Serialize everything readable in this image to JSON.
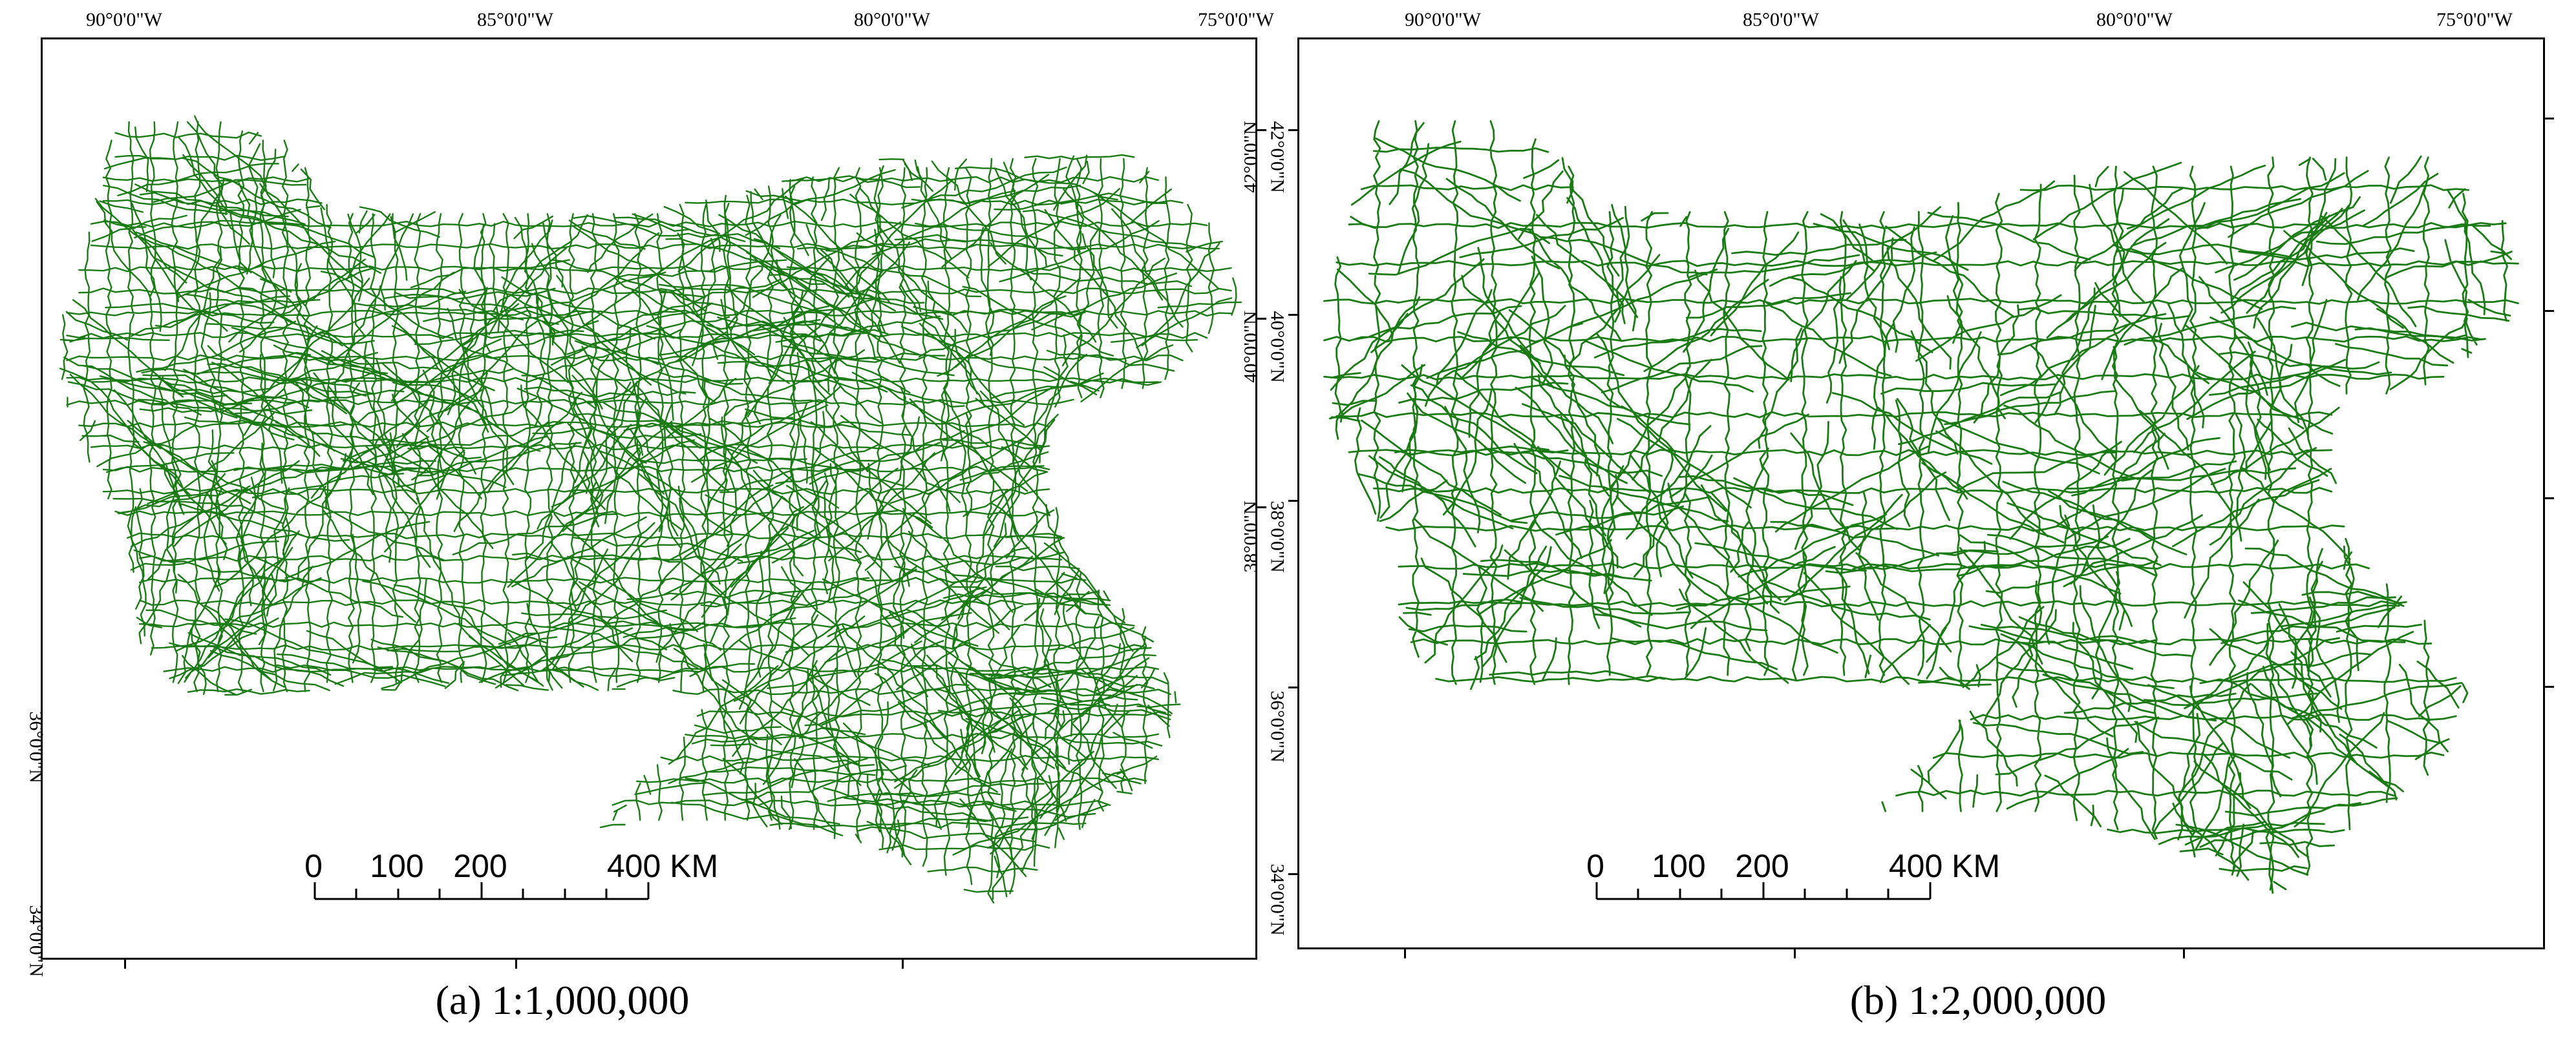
{
  "road_color": "#1a7a14",
  "longitude_labels": [
    "90°0'0\"W",
    "85°0'0\"W",
    "80°0'0\"W",
    "75°0'0\"W"
  ],
  "latitude_labels": [
    "42°0'0\"N",
    "40°0'0\"N",
    "38°0'0\"N",
    "36°0'0\"N",
    "34°0'0\"N"
  ],
  "scale_bar": {
    "labels": [
      "0",
      "100",
      "200",
      "400 KM"
    ]
  },
  "panels": [
    {
      "caption": "(a) 1:1,000,000"
    },
    {
      "caption": "(b) 1:2,000,000"
    }
  ]
}
